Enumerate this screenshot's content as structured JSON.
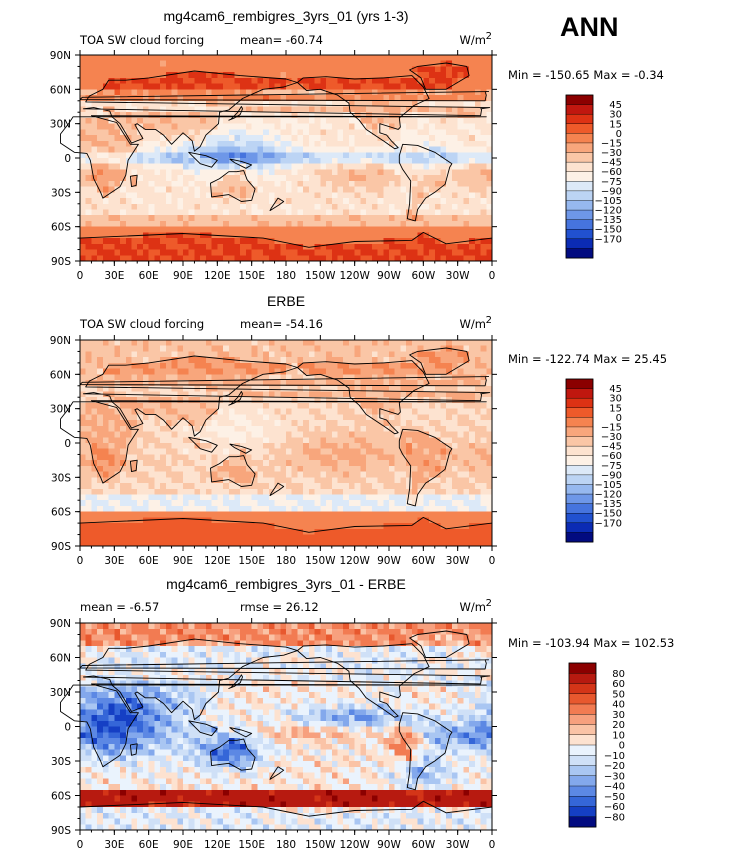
{
  "season": "ANN",
  "chart_data": [
    {
      "type": "heatmap",
      "title": "mg4cam6_rembigres_3yrs_01 (yrs 1-3)",
      "left_label": "TOA SW cloud forcing",
      "stat_label": "mean= -60.74",
      "units": "W/m",
      "units_sup": "2",
      "minmax": "Min = -150.65 Max = -0.34",
      "min": -150.65,
      "max": -0.34,
      "mean": -60.74,
      "lat_ticks": [
        "90N",
        "60N",
        "30N",
        "0",
        "30S",
        "60S",
        "90S"
      ],
      "lon_ticks": [
        "0",
        "30E",
        "60E",
        "90E",
        "120E",
        "150E",
        "180",
        "150W",
        "120W",
        "90W",
        "60W",
        "30W",
        "0"
      ],
      "colorbar": {
        "labels": [
          "45",
          "30",
          "15",
          "0",
          "−15",
          "−30",
          "−45",
          "−60",
          "−75",
          "−90",
          "−105",
          "−120",
          "−135",
          "−150",
          "−170"
        ],
        "colors": [
          "#8b0000",
          "#c0170f",
          "#dd3214",
          "#ee5a2a",
          "#f58350",
          "#f8a67c",
          "#fac6a6",
          "#fde3d0",
          "#fdf1e6",
          "#dce9f8",
          "#bcd4f4",
          "#96b8ef",
          "#6e97e8",
          "#4674de",
          "#2151d0",
          "#0b2bb4",
          "#020b80"
        ]
      }
    },
    {
      "type": "heatmap",
      "title": "ERBE",
      "left_label": "TOA SW cloud forcing",
      "stat_label": "mean= -54.16",
      "units": "W/m",
      "units_sup": "2",
      "minmax": "Min = -122.74 Max = 25.45",
      "min": -122.74,
      "max": 25.45,
      "mean": -54.16,
      "lat_ticks": [
        "90N",
        "60N",
        "30N",
        "0",
        "30S",
        "60S",
        "90S"
      ],
      "lon_ticks": [
        "0",
        "30E",
        "60E",
        "90E",
        "120E",
        "150E",
        "180",
        "150W",
        "120W",
        "90W",
        "60W",
        "30W",
        "0"
      ],
      "colorbar": {
        "labels": [
          "45",
          "30",
          "15",
          "0",
          "−15",
          "−30",
          "−45",
          "−60",
          "−75",
          "−90",
          "−105",
          "−120",
          "−135",
          "−150",
          "−170"
        ],
        "colors": [
          "#8b0000",
          "#c0170f",
          "#dd3214",
          "#ee5a2a",
          "#f58350",
          "#f8a67c",
          "#fac6a6",
          "#fde3d0",
          "#fdf1e6",
          "#dce9f8",
          "#bcd4f4",
          "#96b8ef",
          "#6e97e8",
          "#4674de",
          "#2151d0",
          "#0b2bb4",
          "#020b80"
        ]
      }
    },
    {
      "type": "heatmap",
      "title": "mg4cam6_rembigres_3yrs_01 - ERBE",
      "left_label": "mean = -6.57",
      "stat_label": "rmse = 26.12",
      "units": "W/m",
      "units_sup": "2",
      "minmax": "Min = -103.94 Max = 102.53",
      "min": -103.94,
      "max": 102.53,
      "mean": -6.57,
      "rmse": 26.12,
      "lat_ticks": [
        "90N",
        "60N",
        "30N",
        "0",
        "30S",
        "60S",
        "90S"
      ],
      "lon_ticks": [
        "0",
        "30E",
        "60E",
        "90E",
        "120E",
        "150E",
        "180",
        "150W",
        "120W",
        "90W",
        "60W",
        "30W",
        "0"
      ],
      "colorbar": {
        "labels": [
          "80",
          "60",
          "50",
          "40",
          "30",
          "20",
          "10",
          "0",
          "−10",
          "−20",
          "−30",
          "−40",
          "−50",
          "−60",
          "−80"
        ],
        "colors": [
          "#8b0000",
          "#b71a10",
          "#d43518",
          "#e8582e",
          "#f27b52",
          "#f7a07e",
          "#fac3a6",
          "#fde2d0",
          "#eaf3fd",
          "#cfe0f7",
          "#a9c6f2",
          "#83a8ec",
          "#5c88e4",
          "#3566d8",
          "#153fc4",
          "#020b80"
        ]
      }
    }
  ]
}
